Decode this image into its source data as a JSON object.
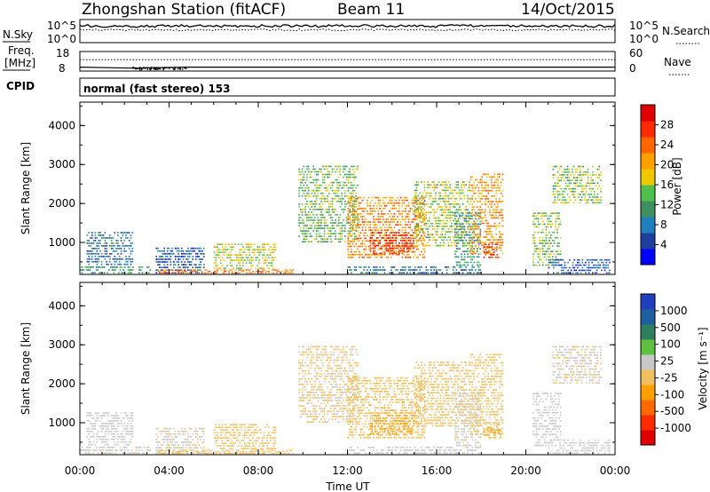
{
  "header": {
    "station": "Zhongshan Station (fitACF)",
    "beam": "Beam 11",
    "date": "14/Oct/2015"
  },
  "summary_panel": {
    "nsky_label": "N.Sky",
    "nsearch_label": "N.Search",
    "freq_label_1": "Freq.",
    "freq_label_2": "[MHz]",
    "nave_label": "Nave",
    "cpid_label": "CPID",
    "left_top_ticks": [
      "10^5",
      "10^0"
    ],
    "right_top_ticks": [
      "10^5",
      "10^0"
    ],
    "left_freq_ticks": [
      "18",
      "8"
    ],
    "right_nave_ticks": [
      "60",
      "0"
    ],
    "mode_text": "normal (fast stereo) 153"
  },
  "power_panel": {
    "ylabel": "Slant Range [km]",
    "yticks": [
      "4000",
      "3000",
      "2000",
      "1000"
    ],
    "colorbar_label": "Power [dB]",
    "colorbar_ticks": [
      "28",
      "24",
      "20",
      "16",
      "12",
      "8",
      "4"
    ],
    "colors": [
      "#0000ff",
      "#1f3f9f",
      "#1f7fbf",
      "#3f8f5f",
      "#4fbf4f",
      "#f0c800",
      "#ff9f00",
      "#ff6600",
      "#ff2a00",
      "#e00000"
    ]
  },
  "velocity_panel": {
    "ylabel": "Slant Range [km]",
    "yticks": [
      "4000",
      "3000",
      "2000",
      "1000"
    ],
    "colorbar_label": "Velocity [m s⁻¹]",
    "colorbar_ticks": [
      "1000",
      "500",
      "100",
      "25",
      "-25",
      "-100",
      "-500",
      "-1000"
    ],
    "colors": [
      "#1f3fbf",
      "#1f5f9f",
      "#2f7f5f",
      "#5fbf3f",
      "#c8c8c8",
      "#f0c060",
      "#ff9f00",
      "#ff6a00",
      "#ff2a00",
      "#e00000"
    ]
  },
  "xaxis": {
    "label": "Time UT",
    "ticks": [
      "00:00",
      "04:00",
      "08:00",
      "12:00",
      "16:00",
      "20:00",
      "00:00"
    ]
  },
  "chart_data": {
    "type": "heatmap",
    "title": "Zhongshan Station (fitACF) Beam 11 14/Oct/2015",
    "xlabel": "Time UT",
    "ylabel": "Slant Range [km]",
    "xlim": [
      0,
      24
    ],
    "ylim": [
      180,
      4600
    ],
    "power_scale": [
      0,
      30
    ],
    "velocity_scale": [
      -1200,
      1200
    ],
    "regions": [
      {
        "t": [
          0.0,
          3.2
        ],
        "r": [
          200,
          420
        ],
        "p": 10,
        "v": 80
      },
      {
        "t": [
          0.3,
          2.4
        ],
        "r": [
          420,
          1300
        ],
        "p": 7,
        "v": 120
      },
      {
        "t": [
          3.4,
          5.6
        ],
        "r": [
          200,
          900
        ],
        "p": 6,
        "v": 60
      },
      {
        "t": [
          3.5,
          9.6
        ],
        "r": [
          200,
          320
        ],
        "p": 22,
        "v": -180
      },
      {
        "t": [
          6.0,
          8.8
        ],
        "r": [
          320,
          1000
        ],
        "p": 16,
        "v": -100
      },
      {
        "t": [
          9.8,
          12.5
        ],
        "r": [
          1000,
          3000
        ],
        "p": 13,
        "v": -30
      },
      {
        "t": [
          12.0,
          15.5
        ],
        "r": [
          600,
          2200
        ],
        "p": 21,
        "v": -160
      },
      {
        "t": [
          13.0,
          15.0
        ],
        "r": [
          700,
          1300
        ],
        "p": 27,
        "v": -280
      },
      {
        "t": [
          15.0,
          17.5
        ],
        "r": [
          900,
          2600
        ],
        "p": 15,
        "v": -90
      },
      {
        "t": [
          16.8,
          18.0
        ],
        "r": [
          400,
          1800
        ],
        "p": 10,
        "v": 70
      },
      {
        "t": [
          17.5,
          19.0
        ],
        "r": [
          700,
          2800
        ],
        "p": 20,
        "v": -120
      },
      {
        "t": [
          18.1,
          18.9
        ],
        "r": [
          600,
          1000
        ],
        "p": 26,
        "v": -240
      },
      {
        "t": [
          12.0,
          18.0
        ],
        "r": [
          200,
          420
        ],
        "p": 8,
        "v": 140
      },
      {
        "t": [
          20.3,
          21.6
        ],
        "r": [
          400,
          1800
        ],
        "p": 14,
        "v": 120
      },
      {
        "t": [
          21.2,
          23.4
        ],
        "r": [
          2000,
          3000
        ],
        "p": 14,
        "v": 30
      },
      {
        "t": [
          21.0,
          23.8
        ],
        "r": [
          200,
          600
        ],
        "p": 6,
        "v": 110
      }
    ],
    "nsky_level": 0.72,
    "nsearch_level": 0.55,
    "freq_mhz": [
      {
        "t": 0,
        "f": 10
      },
      {
        "t": 2.3,
        "f": 9.5
      },
      {
        "t": 4.8,
        "f": 10
      },
      {
        "t": 24,
        "f": 10
      }
    ],
    "nave_level": 35
  }
}
